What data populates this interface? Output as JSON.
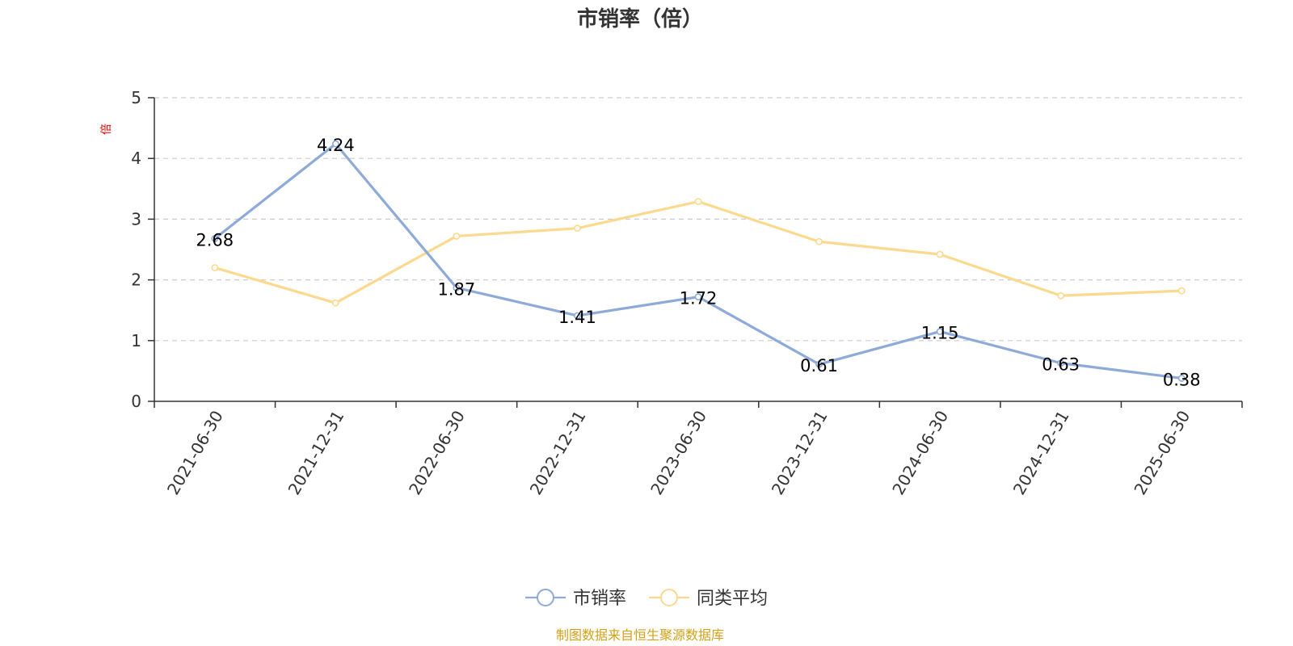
{
  "chart_data": {
    "type": "line",
    "title": "市销率（倍）",
    "ylabel": "倍",
    "xlabel": "",
    "categories": [
      "2021-06-30",
      "2021-12-31",
      "2022-06-30",
      "2022-12-31",
      "2023-06-30",
      "2023-12-31",
      "2024-06-30",
      "2024-12-31",
      "2025-06-30"
    ],
    "ylim": [
      0,
      5
    ],
    "yticks": [
      0,
      1,
      2,
      3,
      4,
      5
    ],
    "grid": true,
    "legend_position": "bottom-center",
    "series": [
      {
        "name": "市销率",
        "color": "#8eaad8",
        "values": [
          2.68,
          4.24,
          1.87,
          1.41,
          1.72,
          0.61,
          1.15,
          0.63,
          0.38
        ],
        "data_labels": [
          "2.68",
          "4.24",
          "1.87",
          "1.41",
          "1.72",
          "0.61",
          "1.15",
          "0.63",
          "0.38"
        ]
      },
      {
        "name": "同类平均",
        "color": "#fcd98e",
        "values": [
          2.2,
          1.62,
          2.72,
          2.85,
          3.29,
          2.63,
          2.42,
          1.74,
          1.82
        ]
      }
    ],
    "source": "制图数据来自恒生聚源数据库"
  }
}
